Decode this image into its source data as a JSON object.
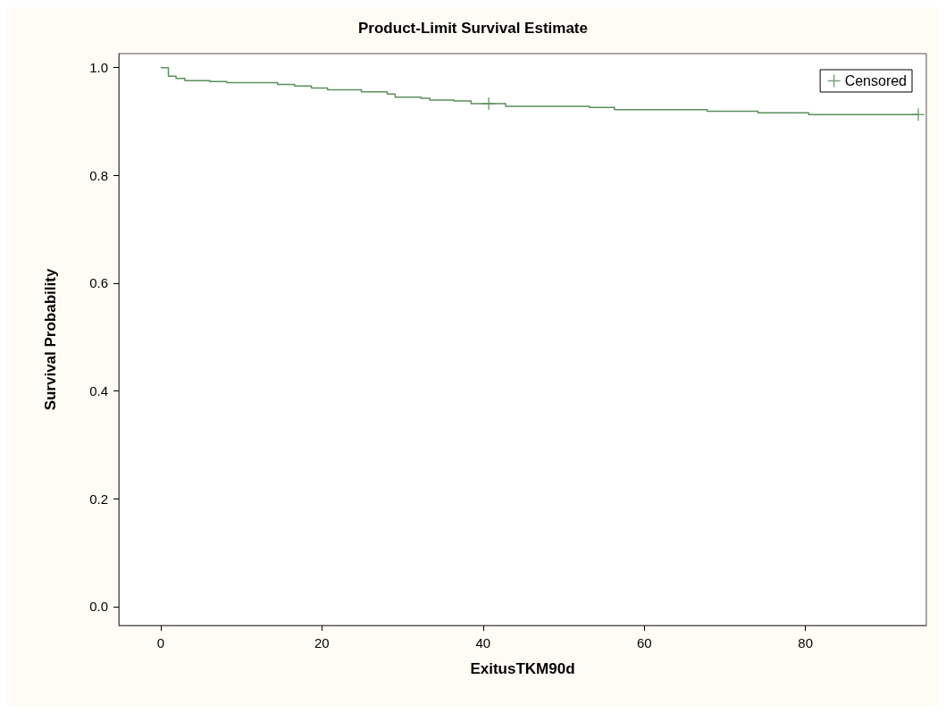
{
  "chart_data": {
    "type": "step",
    "title": "Product-Limit Survival Estimate",
    "xlabel": "ExitusTKM90d",
    "ylabel": "Survival Probability",
    "series": [
      {
        "color": "#5b8f5b",
        "x": [
          0,
          0.95,
          1.9,
          3.0,
          6.1,
          8.2,
          14.5,
          16.6,
          18.7,
          20.7,
          24.9,
          28.1,
          29.1,
          32.3,
          33.4,
          36.4,
          38.5,
          42.8,
          53.2,
          56.3,
          67.8,
          74.1,
          80.4,
          94
        ],
        "values": [
          1.0,
          0.984,
          0.98,
          0.976,
          0.974,
          0.972,
          0.969,
          0.966,
          0.962,
          0.959,
          0.955,
          0.951,
          0.945,
          0.943,
          0.94,
          0.938,
          0.933,
          0.928,
          0.926,
          0.922,
          0.919,
          0.916,
          0.913,
          0.913
        ]
      },
      {
        "type": "scatter",
        "name": "Censored",
        "color": "#5b8f5b",
        "marker": "cross",
        "x": [
          40.7,
          94
        ],
        "values": [
          0.933,
          0.913
        ]
      }
    ],
    "xlim": [
      -5.2,
      95
    ],
    "xticks": [
      0,
      20,
      40,
      60,
      80
    ],
    "ylim": [
      -0.035,
      1.026
    ],
    "yticks": [
      {
        "value": 0,
        "label": "0.0"
      },
      0.2,
      0.4,
      0.6,
      0.8,
      {
        "value": 1,
        "label": "1.0"
      }
    ],
    "grid": false,
    "legend": "top right"
  }
}
